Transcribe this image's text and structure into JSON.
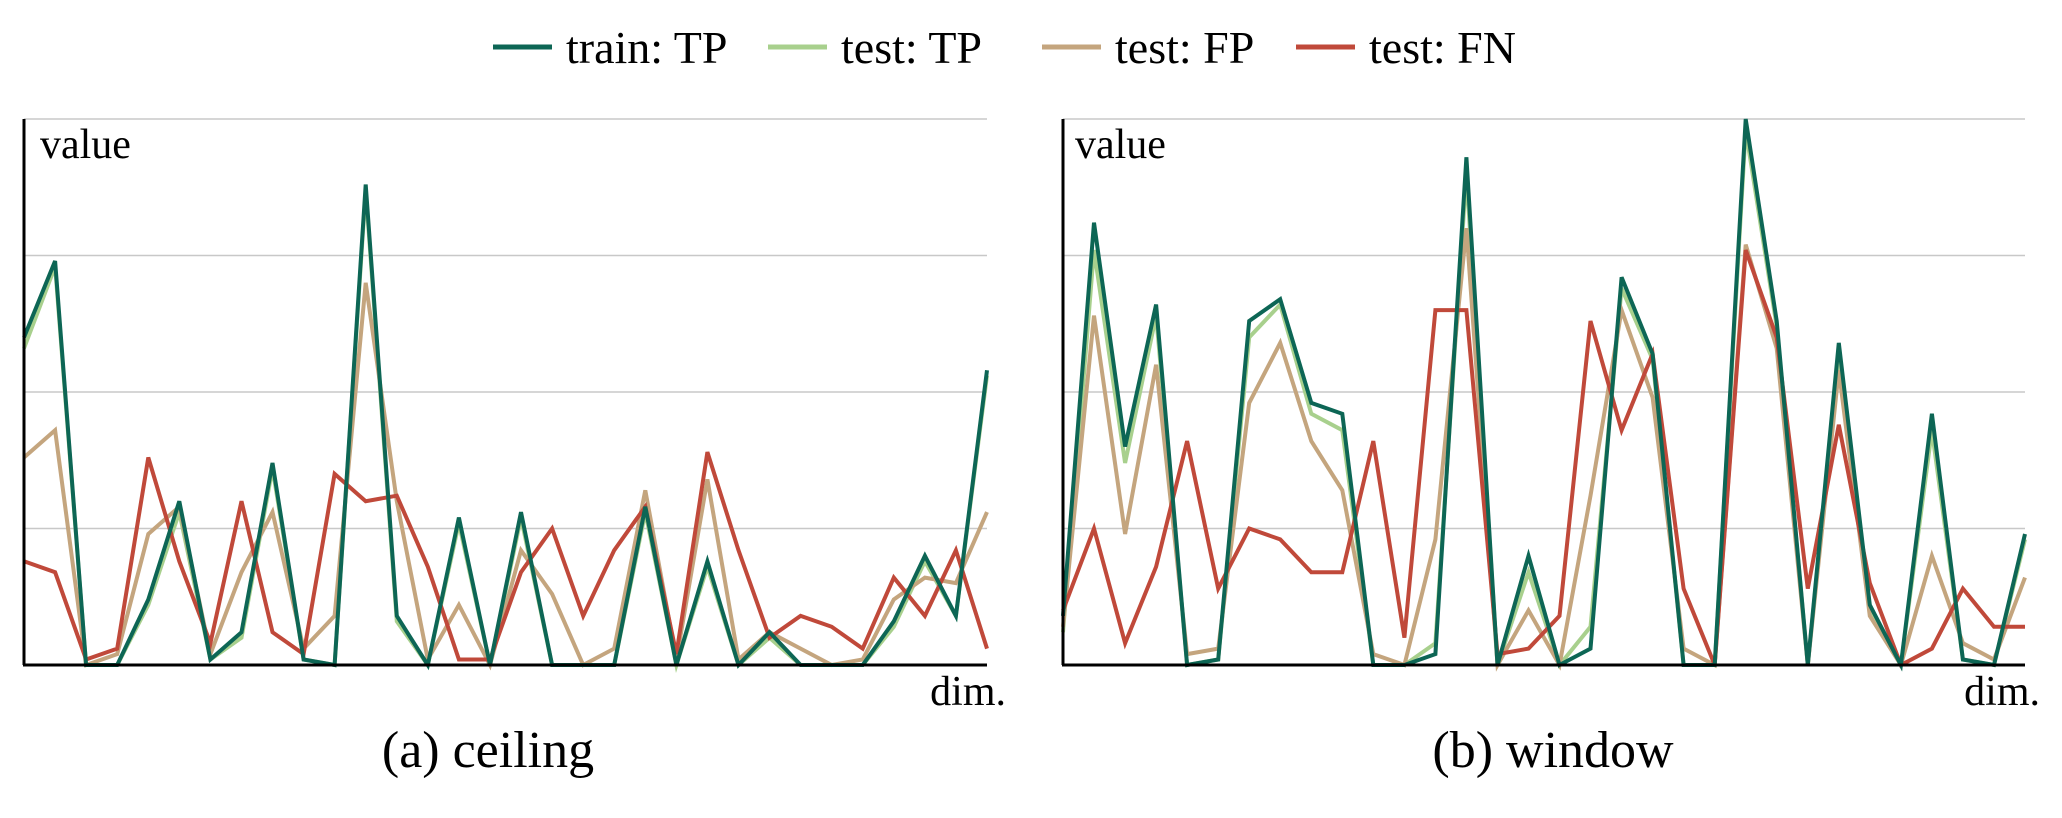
{
  "legend": [
    {
      "label": "train: TP",
      "color": "#0d6655"
    },
    {
      "label": "test: TP",
      "color": "#a8d08d"
    },
    {
      "label": "test: FP",
      "color": "#c4a57e"
    },
    {
      "label": "test: FN",
      "color": "#c0493a"
    }
  ],
  "chart_data": [
    {
      "type": "line",
      "caption": "(a) ceiling",
      "ylabel": "value",
      "xlabel": "dim.",
      "ylim": [
        0,
        100
      ],
      "grid": true,
      "legend_placement": "top",
      "series": [
        {
          "name": "train: TP",
          "color": "#0d6655",
          "values": [
            60,
            74,
            0,
            0,
            12,
            30,
            1,
            6,
            37,
            1,
            0,
            88,
            9,
            0,
            27,
            0,
            28,
            0,
            0,
            0,
            29,
            0,
            19,
            0,
            6,
            0,
            0,
            0,
            8,
            20,
            9,
            54
          ]
        },
        {
          "name": "test: TP",
          "color": "#a8d08d",
          "values": [
            58,
            73,
            0,
            0,
            11,
            28,
            1,
            5,
            36,
            1,
            0,
            87,
            8,
            0,
            26,
            0,
            27,
            0,
            0,
            0,
            28,
            0,
            18,
            0,
            5,
            0,
            0,
            0,
            7,
            19,
            9,
            53
          ]
        },
        {
          "name": "test: FP",
          "color": "#c4a57e",
          "values": [
            38,
            43,
            0,
            2,
            24,
            29,
            2,
            17,
            28,
            3,
            9,
            70,
            30,
            1,
            11,
            0,
            21,
            13,
            0,
            3,
            32,
            1,
            34,
            1,
            6,
            3,
            0,
            1,
            12,
            16,
            15,
            28
          ]
        },
        {
          "name": "test: FN",
          "color": "#c0493a",
          "values": [
            19,
            17,
            1,
            3,
            38,
            19,
            4,
            30,
            6,
            2,
            35,
            30,
            31,
            18,
            1,
            1,
            17,
            25,
            9,
            21,
            29,
            2,
            39,
            21,
            5,
            9,
            7,
            3,
            16,
            9,
            21,
            3
          ]
        }
      ]
    },
    {
      "type": "line",
      "caption": "(b) window",
      "ylabel": "value",
      "xlabel": "dim.",
      "ylim": [
        0,
        100
      ],
      "grid": true,
      "legend_placement": "top",
      "series": [
        {
          "name": "train: TP",
          "color": "#0d6655",
          "values": [
            9,
            81,
            40,
            66,
            0,
            1,
            63,
            67,
            48,
            46,
            0,
            0,
            2,
            93,
            0,
            20,
            0,
            3,
            71,
            57,
            0,
            0,
            100,
            63,
            0,
            59,
            11,
            0,
            46,
            1,
            0,
            24
          ]
        },
        {
          "name": "test: TP",
          "color": "#a8d08d",
          "values": [
            6,
            76,
            37,
            64,
            0,
            1,
            60,
            66,
            46,
            43,
            0,
            0,
            4,
            90,
            0,
            17,
            0,
            7,
            69,
            56,
            0,
            0,
            98,
            62,
            0,
            57,
            10,
            0,
            43,
            1,
            0,
            23
          ]
        },
        {
          "name": "test: FP",
          "color": "#c4a57e",
          "values": [
            7,
            64,
            24,
            55,
            2,
            3,
            48,
            59,
            41,
            32,
            2,
            0,
            23,
            80,
            0,
            10,
            0,
            31,
            65,
            49,
            3,
            0,
            77,
            58,
            0,
            54,
            9,
            0,
            20,
            4,
            1,
            16
          ]
        },
        {
          "name": "test: FN",
          "color": "#c0493a",
          "values": [
            10,
            25,
            4,
            18,
            41,
            14,
            25,
            23,
            17,
            17,
            41,
            5,
            65,
            65,
            2,
            3,
            9,
            63,
            43,
            57,
            14,
            0,
            76,
            60,
            14,
            44,
            15,
            0,
            3,
            14,
            7,
            7
          ]
        }
      ]
    }
  ]
}
